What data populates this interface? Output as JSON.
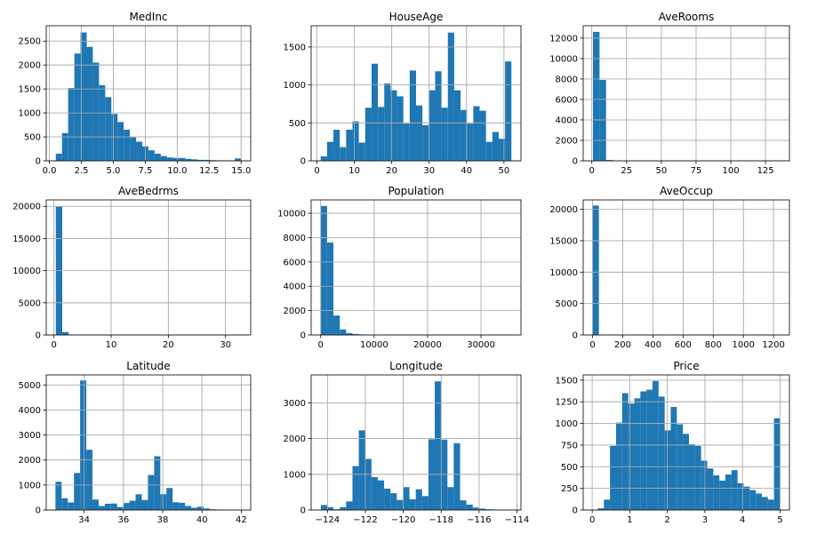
{
  "chart_data": [
    {
      "type": "bar",
      "title": "MedInc",
      "xlim": [
        -0.25,
        15.75
      ],
      "ylim": [
        0,
        2820
      ],
      "xticks": [
        0,
        2.5,
        5,
        7.5,
        10,
        12.5,
        15
      ],
      "xticklabels": [
        "0.0",
        "2.5",
        "5.0",
        "7.5",
        "10.0",
        "12.5",
        "15.0"
      ],
      "yticks": [
        0,
        500,
        1000,
        1500,
        2000,
        2500
      ],
      "yticklabels": [
        "0",
        "500",
        "1000",
        "1500",
        "2000",
        "2500"
      ],
      "bin_start": 0.5,
      "bin_width": 0.483,
      "values": [
        150,
        580,
        1520,
        2240,
        2680,
        2380,
        2050,
        1580,
        1330,
        980,
        810,
        650,
        490,
        400,
        300,
        220,
        150,
        100,
        70,
        60,
        60,
        40,
        30,
        20,
        20,
        15,
        10,
        10,
        10,
        50
      ]
    },
    {
      "type": "bar",
      "title": "HouseAge",
      "xlim": [
        -1.55,
        54.55
      ],
      "ylim": [
        0,
        1780
      ],
      "xticks": [
        0,
        10,
        20,
        30,
        40,
        50
      ],
      "xticklabels": [
        "0",
        "10",
        "20",
        "30",
        "40",
        "50"
      ],
      "yticks": [
        0,
        500,
        1000,
        1500
      ],
      "yticklabels": [
        "0",
        "500",
        "1000",
        "1500"
      ],
      "bin_start": 1,
      "bin_width": 1.7,
      "values": [
        60,
        250,
        410,
        180,
        410,
        520,
        240,
        700,
        1280,
        710,
        1020,
        930,
        850,
        490,
        1190,
        730,
        470,
        930,
        1180,
        700,
        1690,
        930,
        670,
        490,
        720,
        660,
        250,
        380,
        290,
        1310
      ]
    },
    {
      "type": "bar",
      "title": "AveRooms",
      "xlim": [
        -6.2,
        142.2
      ],
      "ylim": [
        0,
        13200
      ],
      "xticks": [
        0,
        25,
        50,
        75,
        100,
        125
      ],
      "xticklabels": [
        "0",
        "25",
        "50",
        "75",
        "100",
        "125"
      ],
      "yticks": [
        0,
        2000,
        4000,
        6000,
        8000,
        10000,
        12000
      ],
      "yticklabels": [
        "0",
        "2000",
        "4000",
        "6000",
        "8000",
        "10000",
        "12000"
      ],
      "bin_start": 0.85,
      "bin_width": 4.7,
      "values": [
        12600,
        7900,
        80,
        20,
        10,
        5,
        3,
        2,
        2,
        1,
        1,
        1,
        1,
        1,
        1,
        1,
        1,
        0,
        0,
        0,
        0,
        0,
        0,
        0,
        0,
        0,
        0,
        0,
        0,
        1
      ]
    },
    {
      "type": "bar",
      "title": "AveBedrms",
      "xlim": [
        -1.35,
        34.4
      ],
      "ylim": [
        0,
        21000
      ],
      "xticks": [
        0,
        10,
        20,
        30
      ],
      "xticklabels": [
        "0",
        "10",
        "20",
        "30"
      ],
      "yticks": [
        0,
        5000,
        10000,
        15000,
        20000
      ],
      "yticklabels": [
        "0",
        "5000",
        "10000",
        "15000",
        "20000"
      ],
      "bin_start": 0.33,
      "bin_width": 1.12,
      "values": [
        19950,
        450,
        80,
        40,
        30,
        25,
        20,
        20,
        20,
        15,
        10,
        10,
        15,
        10,
        5,
        5,
        5,
        5,
        5,
        5,
        5,
        5,
        10,
        5,
        5,
        5,
        5,
        5,
        5,
        10
      ]
    },
    {
      "type": "bar",
      "title": "Population",
      "xlim": [
        -1785,
        37465
      ],
      "ylim": [
        0,
        11100
      ],
      "xticks": [
        0,
        10000,
        20000,
        30000
      ],
      "xticklabels": [
        "0",
        "10000",
        "20000",
        "30000"
      ],
      "yticks": [
        0,
        2000,
        4000,
        6000,
        8000,
        10000
      ],
      "yticklabels": [
        "0",
        "2000",
        "4000",
        "6000",
        "8000",
        "10000"
      ],
      "bin_start": 3,
      "bin_width": 1189,
      "values": [
        10600,
        7600,
        1600,
        450,
        150,
        80,
        50,
        30,
        20,
        20,
        15,
        10,
        10,
        10,
        5,
        5,
        5,
        5,
        5,
        5,
        5,
        5,
        5,
        5,
        5,
        5,
        5,
        5,
        5,
        5
      ]
    },
    {
      "type": "bar",
      "title": "AveOccup",
      "xlim": [
        -61.9,
        1305.1
      ],
      "ylim": [
        0,
        21500
      ],
      "xticks": [
        0,
        200,
        400,
        600,
        800,
        1000,
        1200
      ],
      "xticklabels": [
        "0",
        "200",
        "400",
        "600",
        "800",
        "1000",
        "1200"
      ],
      "yticks": [
        0,
        5000,
        10000,
        15000,
        20000
      ],
      "yticklabels": [
        "0",
        "5000",
        "10000",
        "15000",
        "20000"
      ],
      "bin_start": 0.7,
      "bin_width": 41.4,
      "values": [
        20600,
        20,
        5,
        5,
        5,
        60,
        5,
        5,
        5,
        5,
        5,
        5,
        50,
        20,
        20,
        5,
        5,
        5,
        5,
        5,
        5,
        5,
        5,
        5,
        5,
        5,
        5,
        5,
        5,
        40
      ]
    },
    {
      "type": "bar",
      "title": "Latitude",
      "xlim": [
        32.07,
        42.48
      ],
      "ylim": [
        0,
        5400
      ],
      "xticks": [
        34,
        36,
        38,
        40,
        42
      ],
      "xticklabels": [
        "34",
        "36",
        "38",
        "40",
        "42"
      ],
      "yticks": [
        0,
        1000,
        2000,
        3000,
        4000,
        5000
      ],
      "yticklabels": [
        "0",
        "1000",
        "2000",
        "3000",
        "4000",
        "5000"
      ],
      "bin_start": 32.54,
      "bin_width": 0.314,
      "values": [
        1130,
        470,
        300,
        1480,
        5180,
        2410,
        420,
        160,
        250,
        260,
        120,
        280,
        370,
        630,
        400,
        1400,
        2150,
        630,
        880,
        310,
        290,
        160,
        90,
        130,
        60,
        30,
        20,
        15,
        10,
        5
      ]
    },
    {
      "type": "bar",
      "title": "Longitude",
      "xlim": [
        -124.86,
        -113.79
      ],
      "ylim": [
        0,
        3780
      ],
      "xticks": [
        -124,
        -122,
        -120,
        -118,
        -116,
        -114
      ],
      "xticklabels": [
        "−124",
        "−122",
        "−120",
        "−118",
        "−116",
        "−114"
      ],
      "yticks": [
        0,
        1000,
        2000,
        3000
      ],
      "yticklabels": [
        "0",
        "1000",
        "2000",
        "3000"
      ],
      "bin_start": -124.35,
      "bin_width": 0.334,
      "values": [
        140,
        80,
        20,
        80,
        240,
        1230,
        2230,
        1430,
        920,
        830,
        600,
        470,
        280,
        640,
        300,
        580,
        390,
        1980,
        3600,
        1970,
        640,
        1870,
        270,
        150,
        70,
        40,
        20,
        15,
        10,
        5
      ]
    },
    {
      "type": "bar",
      "title": "Price",
      "xlim": [
        -0.24,
        5.25
      ],
      "ylim": [
        0,
        1560
      ],
      "xticks": [
        0,
        1,
        2,
        3,
        4,
        5
      ],
      "xticklabels": [
        "0",
        "1",
        "2",
        "3",
        "4",
        "5"
      ],
      "yticks": [
        0,
        250,
        500,
        750,
        1000,
        1250,
        1500
      ],
      "yticklabels": [
        "0",
        "250",
        "500",
        "750",
        "1000",
        "1250",
        "1500"
      ],
      "bin_start": 0.15,
      "bin_width": 0.1617,
      "values": [
        20,
        120,
        740,
        1010,
        1350,
        1230,
        1290,
        1370,
        1390,
        1490,
        1310,
        920,
        1190,
        990,
        880,
        760,
        740,
        570,
        480,
        400,
        340,
        410,
        460,
        310,
        270,
        230,
        190,
        150,
        120,
        1060
      ]
    }
  ],
  "bar_color": "#1f77b4"
}
